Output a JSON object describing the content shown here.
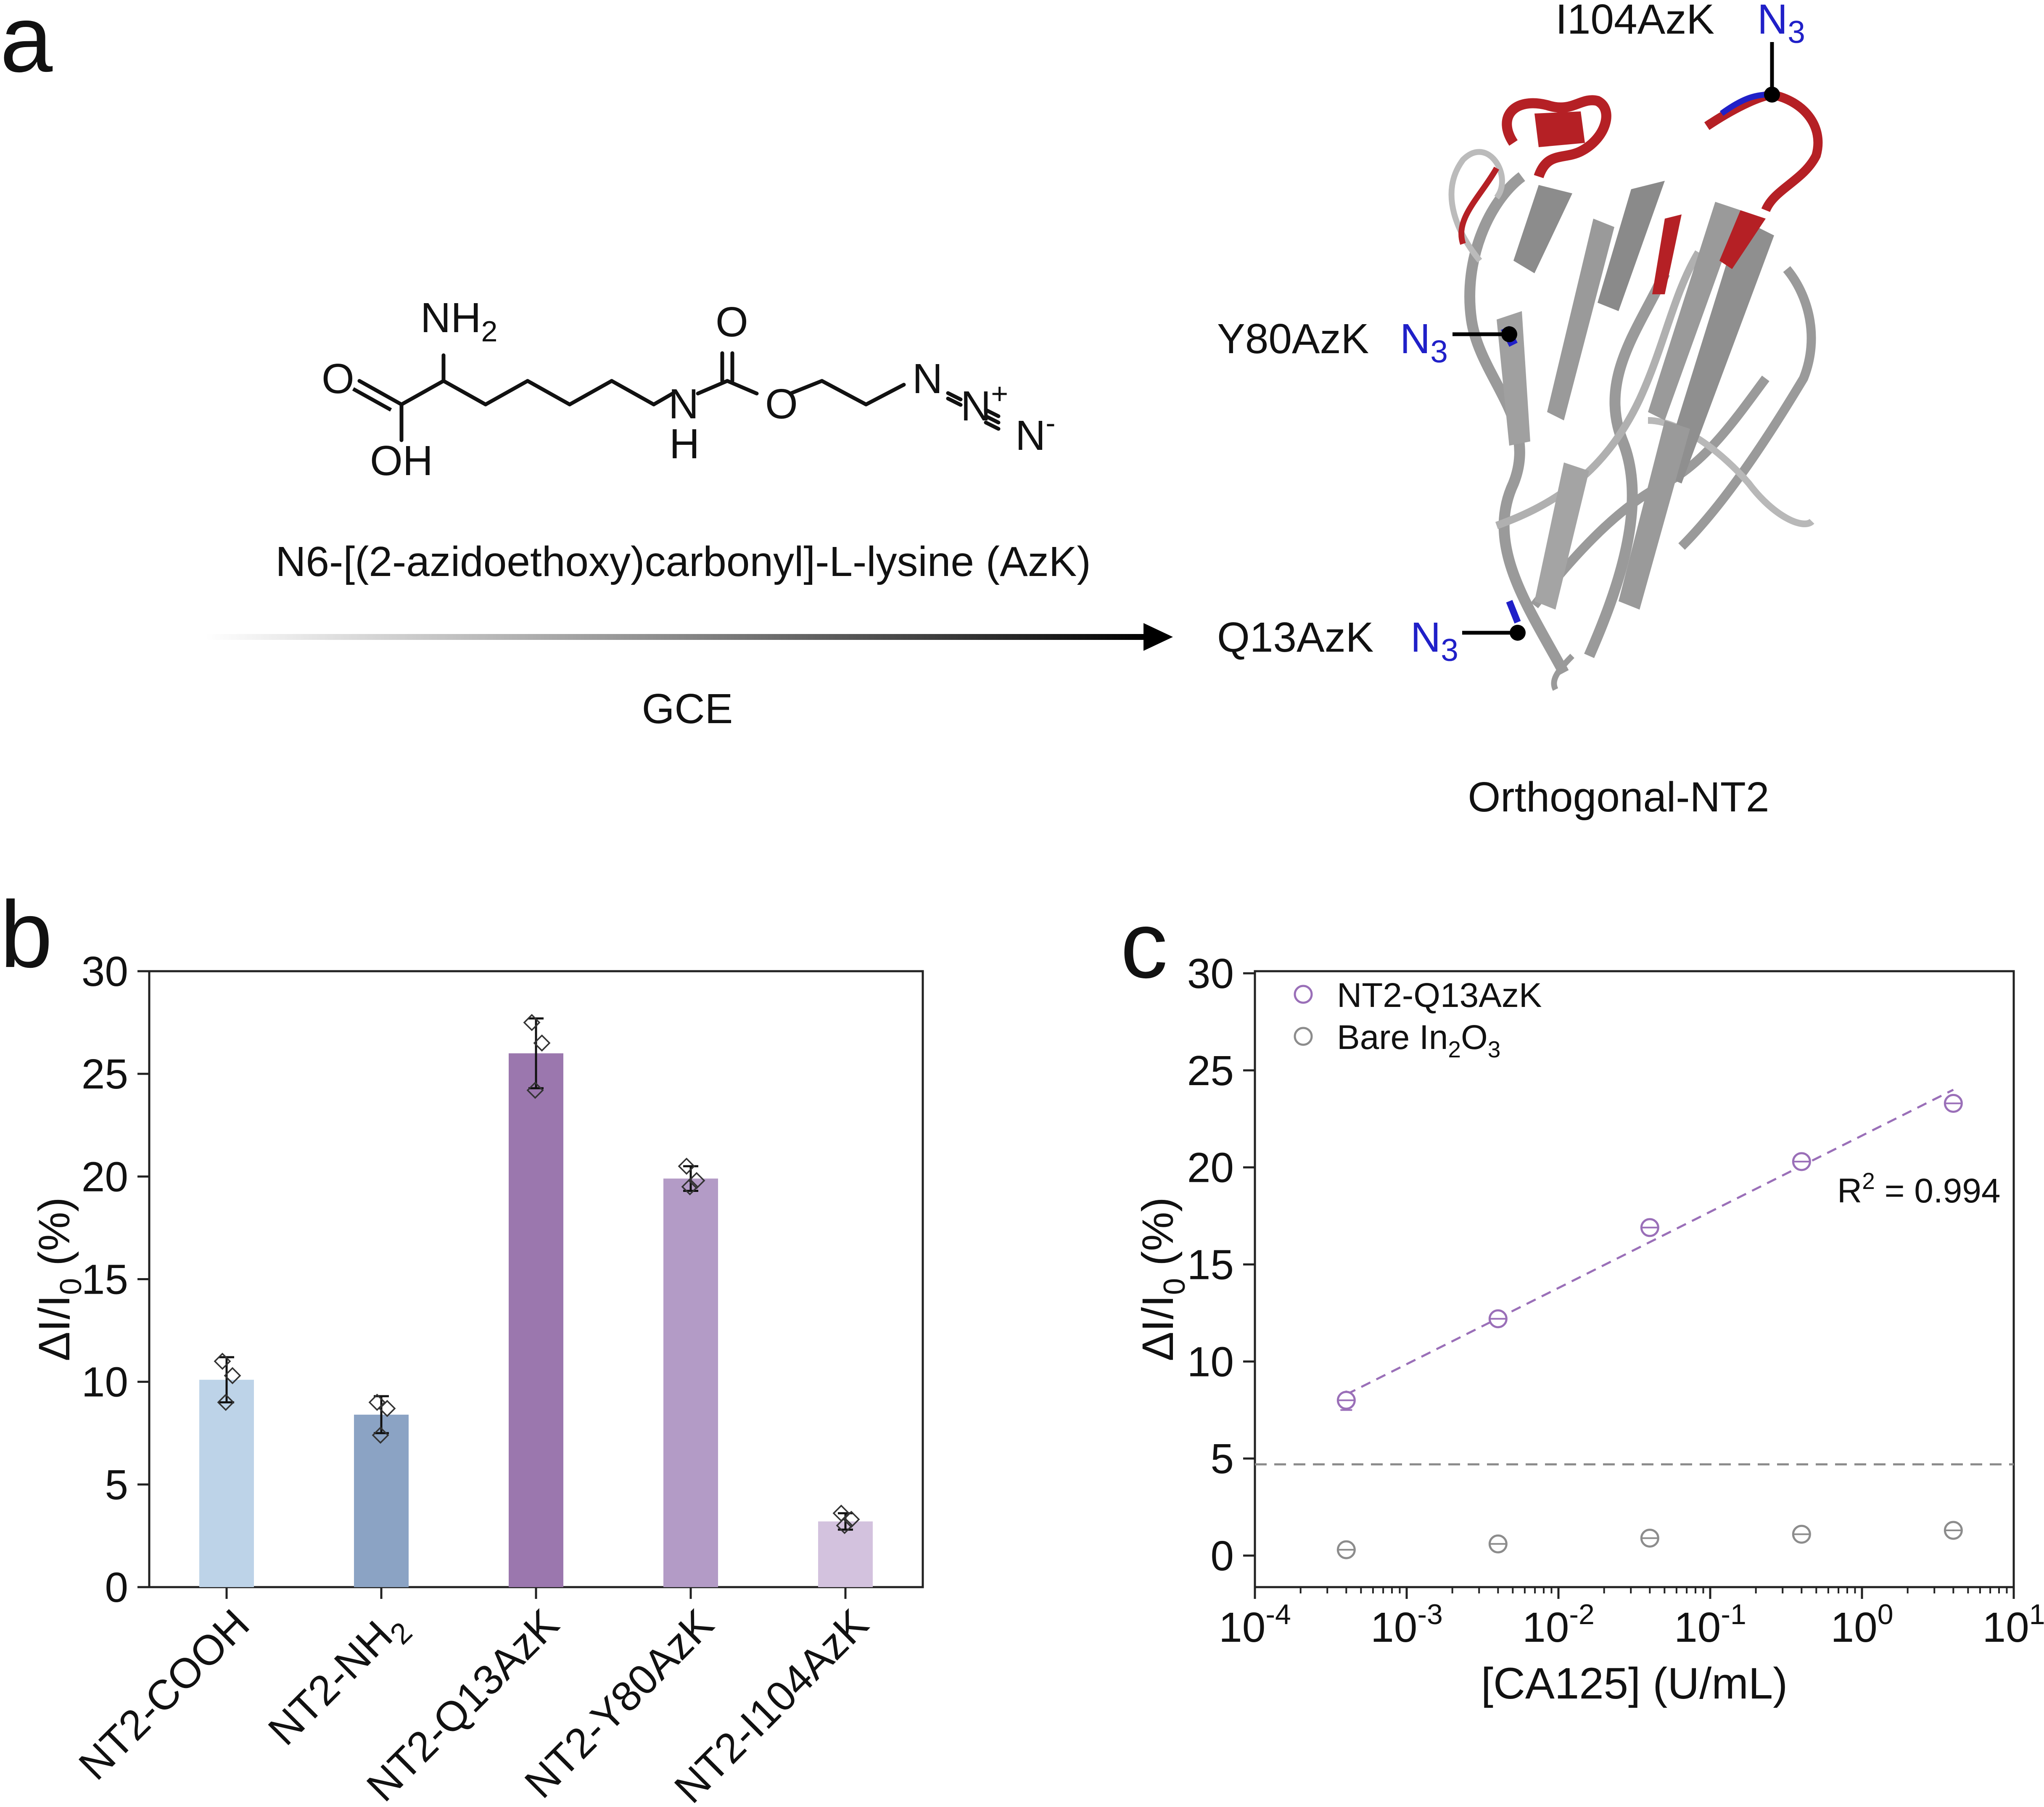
{
  "panel_a": {
    "panel_label": "a",
    "molecule": {
      "nh2": "NH",
      "nh2_sub": "2",
      "carboxyl_o": "O",
      "oh": "OH",
      "nh": "N",
      "nh_h": "H",
      "carbonyl_o": "O",
      "ester_o": "O",
      "azide_n1": "N",
      "azide_n2": "N",
      "azide_n2_charge": "+",
      "azide_n3": "N",
      "azide_n3_charge": "-",
      "name": "N6-[(2-azidoethoxy)carbonyl]-L-lysine (AzK)"
    },
    "arrow_label": "GCE",
    "protein_label": "Orthogonal-NT2",
    "sites": [
      {
        "label": "I104AzK",
        "group": "N",
        "group_sub": "3"
      },
      {
        "label": "Y80AzK",
        "group": "N",
        "group_sub": "3"
      },
      {
        "label": "Q13AzK",
        "group": "N",
        "group_sub": "3"
      }
    ],
    "colors": {
      "azide": "#2020c8",
      "loop": "#b52025",
      "strand": "#9a9a9a"
    }
  },
  "chart_data": [
    {
      "panel": "b",
      "type": "bar",
      "ylabel_parts": [
        "ΔI/I",
        "0",
        " (%)"
      ],
      "ylim": [
        0,
        30
      ],
      "yticks": [
        0,
        5,
        10,
        15,
        20,
        25,
        30
      ],
      "categories": [
        {
          "label": "NT2-COOH",
          "sub": ""
        },
        {
          "label": "NT2-NH",
          "sub": "2"
        },
        {
          "label": "NT2-Q13AzK",
          "sub": ""
        },
        {
          "label": "NT2-Y80AzK",
          "sub": ""
        },
        {
          "label": "NT2-I104AzK",
          "sub": ""
        }
      ],
      "values": [
        10.1,
        8.4,
        26.0,
        19.9,
        3.2
      ],
      "errors": [
        1.1,
        0.9,
        1.7,
        0.6,
        0.4
      ],
      "points": [
        [
          11.0,
          10.3,
          9.0
        ],
        [
          9.0,
          8.7,
          7.4
        ],
        [
          27.5,
          26.5,
          24.2
        ],
        [
          20.5,
          19.8,
          19.5
        ],
        [
          3.6,
          3.3,
          3.0
        ]
      ],
      "colors": [
        "#bdd3e8",
        "#8ba3c4",
        "#9b77ae",
        "#b39bc6",
        "#d3c2de"
      ]
    },
    {
      "panel": "c",
      "type": "scatter",
      "xlabel": "[CA125] (U/mL)",
      "ylabel_parts": [
        "ΔI/I",
        "0",
        " (%)"
      ],
      "xscale": "log",
      "xlim": [
        0.0001,
        10
      ],
      "xtick_exponents": [
        "-4",
        "-3",
        "-2",
        "-1",
        "0",
        "1"
      ],
      "xtick_base": "10",
      "ylim": [
        0,
        30
      ],
      "yticks": [
        0,
        5,
        10,
        15,
        20,
        25,
        30
      ],
      "series": [
        {
          "name": "NT2-Q13AzK",
          "color": "#9a6fb8",
          "x": [
            0.0004,
            0.004,
            0.04,
            0.4,
            4
          ],
          "y": [
            8.0,
            12.2,
            16.9,
            20.3,
            23.3
          ],
          "err": [
            0.5,
            0.3,
            0.3,
            0.3,
            0.3
          ]
        },
        {
          "name": "Bare In",
          "name_sub1": "2",
          "name_mid": "O",
          "name_sub2": "3",
          "color": "#8c8c8c",
          "x": [
            0.0004,
            0.004,
            0.04,
            0.4,
            4
          ],
          "y": [
            0.3,
            0.6,
            0.9,
            1.1,
            1.3
          ],
          "err": [
            0.2,
            0.2,
            0.2,
            0.2,
            0.2
          ]
        }
      ],
      "fit": {
        "x": [
          0.0004,
          4
        ],
        "y": [
          8.3,
          24.0
        ],
        "color": "#9a6fb8"
      },
      "fit_label_parts": [
        "R",
        "2",
        " = 0.994"
      ],
      "threshold": 4.7,
      "threshold_color": "#8a8a8a",
      "legend_position": "top-left"
    }
  ]
}
